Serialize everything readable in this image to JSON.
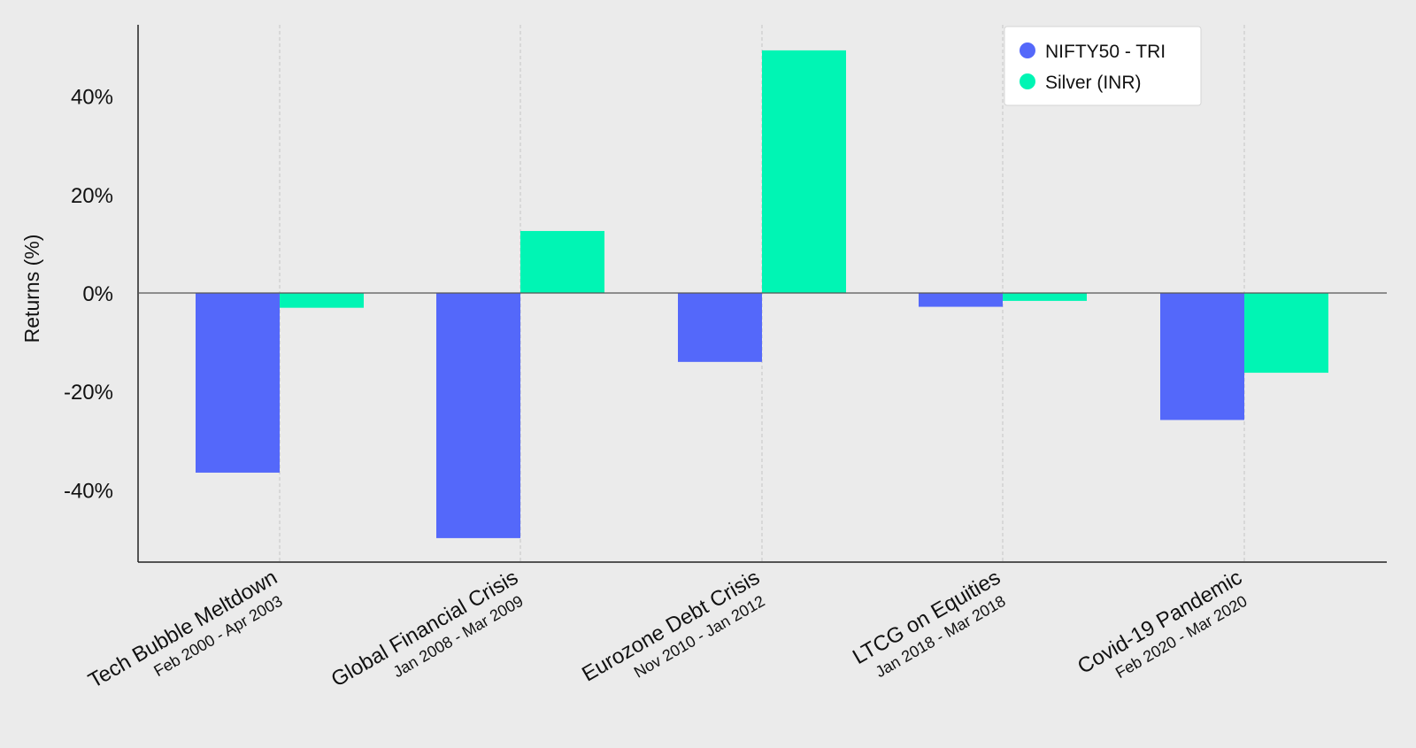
{
  "chart_data": {
    "type": "bar",
    "title": "",
    "xlabel": "",
    "ylabel": "Returns (%)",
    "ylim": [
      -54.5,
      54.5
    ],
    "yticks": [
      -40,
      -20,
      0,
      20,
      40
    ],
    "ytick_labels": [
      "-40%",
      "-20%",
      "0%",
      "20%",
      "40%"
    ],
    "grid": "vertical dashed lines at category centers",
    "legend_position": "top-right",
    "categories": [
      "Tech Bubble Meltdown",
      "Global Financial Crisis",
      "Eurozone Debt Crisis",
      "LTCG on Equities",
      "Covid-19 Pandemic"
    ],
    "category_periods": [
      "Feb 2000 - Apr 2003",
      "Jan 2008 - Mar 2009",
      "Nov 2010 - Jan 2012",
      "Jan 2018 - Mar 2018",
      "Feb 2020 - Mar 2020"
    ],
    "series": [
      {
        "name": "NIFTY50 - TRI",
        "color": "#5468fa",
        "values": [
          -36.5,
          -49.8,
          -14.0,
          -2.8,
          -25.8
        ]
      },
      {
        "name": "Silver (INR)",
        "color": "#00f5b4",
        "values": [
          -3.0,
          12.6,
          49.3,
          -1.6,
          -16.2
        ]
      }
    ]
  }
}
